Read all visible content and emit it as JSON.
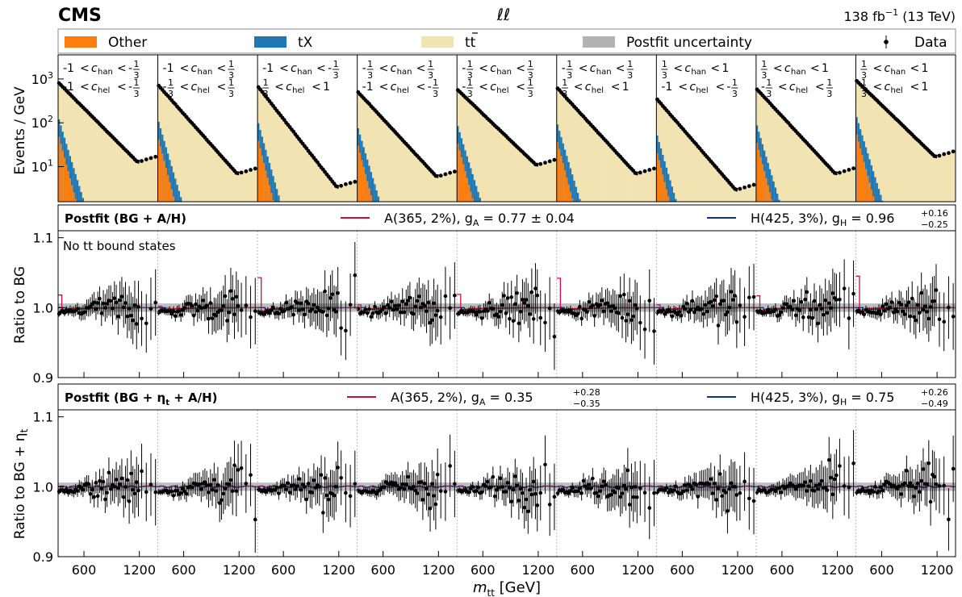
{
  "header": {
    "experiment": "CMS",
    "channel": "ℓℓ",
    "lumi": "138 fb",
    "lumi_exp": "−1",
    "energy": " (13 TeV)"
  },
  "legend": {
    "other": "Other",
    "tx": "tX",
    "tt_main": "t",
    "tt_sub": "t",
    "unc": "Postfit uncertainty",
    "data": "Data"
  },
  "colors": {
    "other": "#ff7f0e",
    "tx": "#1f77b4",
    "tt": "#f2e3b3",
    "unc": "#b3b3b3",
    "a_line": "#c8103e",
    "h_line": "#0b2f9a",
    "data": "#000000"
  },
  "bins": [
    {
      "chan": [
        "-1",
        "-",
        "1",
        "3"
      ],
      "hel": [
        "-1",
        "-",
        "1",
        "3"
      ]
    },
    {
      "chan": [
        "-1",
        "",
        "1",
        "3"
      ],
      "hel": [
        "-",
        "1",
        "3",
        "",
        "1",
        "3"
      ]
    },
    {
      "chan": [
        "-1",
        "-",
        "1",
        "3"
      ],
      "hel": [
        "1",
        "3",
        "1"
      ]
    },
    {
      "chan": [
        "-",
        "1",
        "3",
        "",
        "1",
        "3"
      ],
      "hel": [
        "-1",
        "-",
        "1",
        "3"
      ]
    },
    {
      "chan": [
        "-",
        "1",
        "3",
        "",
        "1",
        "3"
      ],
      "hel": [
        "-",
        "1",
        "3",
        "",
        "1",
        "3"
      ]
    },
    {
      "chan": [
        "-",
        "1",
        "3",
        "",
        "1",
        "3"
      ],
      "hel": [
        "1",
        "3",
        "1"
      ]
    },
    {
      "chan": [
        "1",
        "3",
        "1"
      ],
      "hel": [
        "-1",
        "-",
        "1",
        "3"
      ]
    },
    {
      "chan": [
        "1",
        "3",
        "1"
      ],
      "hel": [
        "-",
        "1",
        "3",
        "",
        "1",
        "3"
      ]
    },
    {
      "chan": [
        "1",
        "3",
        "1"
      ],
      "hel": [
        "1",
        "3",
        "1"
      ]
    }
  ],
  "labels": {
    "c_han": "c",
    "han_sub": "han",
    "c_hel": "c",
    "hel_sub": "hel",
    "lt": "<"
  },
  "panel_top": {
    "ylabel": "Events / GeV",
    "ytick_base": "10",
    "ytick_exps": [
      "1",
      "2",
      "3"
    ]
  },
  "panel_mid": {
    "title": "Postfit (BG + A/H)",
    "a_label": "A(365, 2%), g",
    "a_sub": "A",
    "a_val": " = 0.77 ± 0.04",
    "h_label": "H(425, 3%), g",
    "h_sub": "H",
    "h_val": " = 0.96",
    "h_up": "+0.16",
    "h_dn": "−0.25",
    "note_pre": "No t",
    "note_post": " bound states",
    "ylabel": "Ratio to  BG",
    "yticks": [
      "1.1",
      "1.0",
      "0.9"
    ]
  },
  "panel_bot": {
    "title_pre": "Postfit (BG + ",
    "title_eta": "η",
    "title_eta_sub": "t",
    "title_post": " + A/H)",
    "a_label": "A(365, 2%), g",
    "a_sub": "A",
    "a_val": " = 0.35",
    "a_up": "+0.28",
    "a_dn": "−0.35",
    "h_label": "H(425, 3%), g",
    "h_sub": "H",
    "h_val": " = 0.75",
    "h_up": "+0.26",
    "h_dn": "−0.49",
    "ylabel_pre": "Ratio to BG + ",
    "ylabel_eta": "η",
    "ylabel_sub": "t",
    "yticks": [
      "1.1",
      "1.0",
      "0.9"
    ]
  },
  "xaxis": {
    "label_m": "m",
    "label_sub": "tt",
    "label_unit": " [GeV]",
    "ticks": [
      "600",
      "1200"
    ]
  },
  "chart_data": {
    "type": "bar",
    "x_range_per_bin": [
      320,
      1400
    ],
    "x_ticks": [
      600,
      1200
    ],
    "bin_edges": [
      320,
      340,
      360,
      380,
      400,
      420,
      440,
      460,
      480,
      500,
      520,
      540,
      560,
      580,
      600,
      620,
      640,
      660,
      680,
      700,
      720,
      740,
      760,
      780,
      800,
      820,
      840,
      860,
      880,
      900,
      920,
      940,
      960,
      980,
      1000,
      1020,
      1040,
      1060,
      1080,
      1100,
      1120,
      1140,
      1160,
      1180,
      1200,
      1250,
      1300,
      1350,
      1400
    ],
    "top_ylim_log10": [
      0.2,
      3.55
    ],
    "top_data_peak_per_bin": [
      800,
      700,
      650,
      500,
      560,
      610,
      340,
      580,
      900
    ],
    "top_data_tail_per_bin": [
      13,
      7,
      3.5,
      6,
      11,
      7,
      3,
      7,
      17
    ],
    "ratio_ylim": [
      0.9,
      1.11
    ],
    "ratio_bg_ylim": [
      0.9,
      1.11
    ],
    "signal_A_peak_ratio_per_bin": [
      1.018,
      1.002,
      1.043,
      1.004,
      1.019,
      1.042,
      1.004,
      1.017,
      1.045
    ],
    "signal_H_dip_ratio": 0.997,
    "uncertainty_halfwidth_ratio": 0.006
  }
}
